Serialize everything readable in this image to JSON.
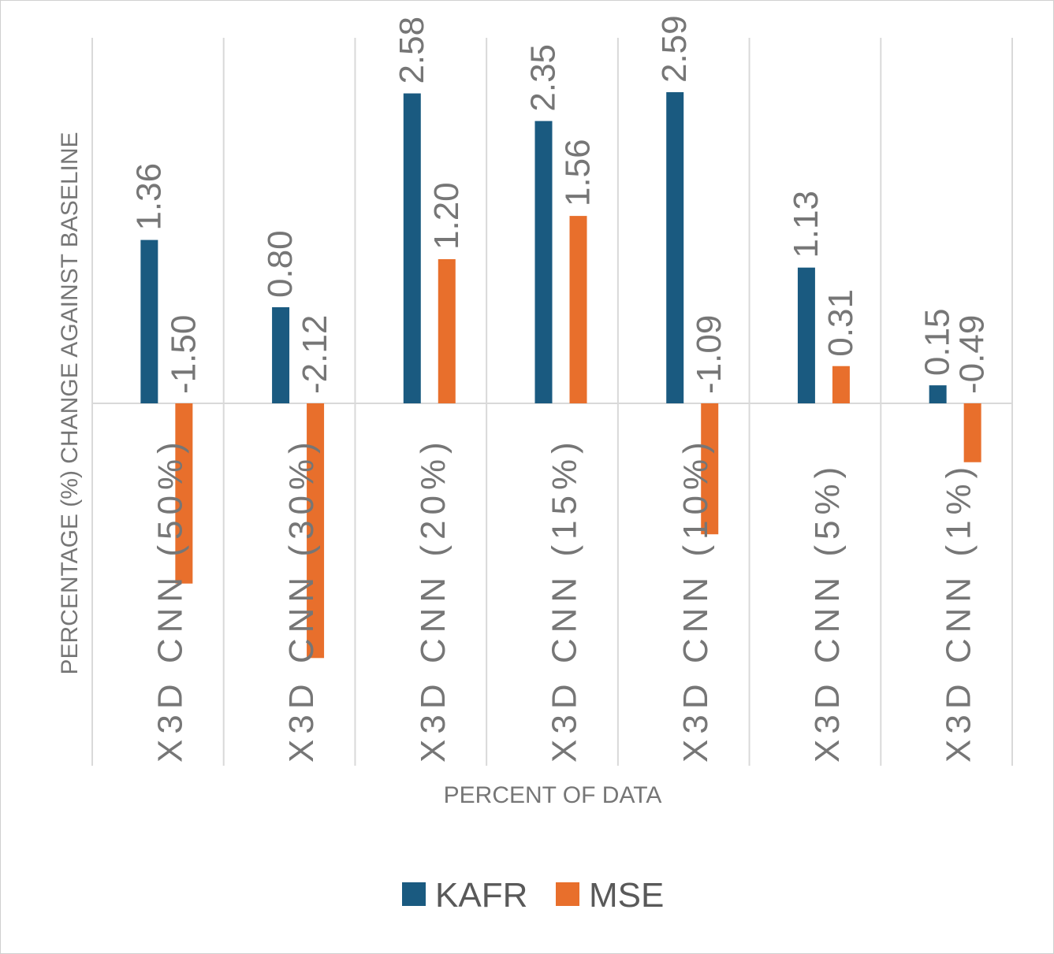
{
  "chart_data": {
    "type": "bar",
    "orientation": "vertical",
    "categories": [
      "X3D CNN (50%)",
      "X3D CNN (30%)",
      "X3D CNN (20%)",
      "X3D CNN (15%)",
      "X3D CNN (10%)",
      "X3D CNN (5%)",
      "X3D CNN (1%)"
    ],
    "series": [
      {
        "name": "KAFR",
        "color": "#1a5a80",
        "values": [
          1.36,
          0.8,
          2.58,
          2.35,
          2.59,
          1.13,
          0.15
        ]
      },
      {
        "name": "MSE",
        "color": "#e86f2c",
        "values": [
          -1.5,
          -2.12,
          1.2,
          1.56,
          -1.09,
          0.31,
          -0.49
        ]
      }
    ],
    "value_labels": {
      "KAFR": [
        "1.36",
        "0.80",
        "2.58",
        "2.35",
        "2.59",
        "1.13",
        "0.15"
      ],
      "MSE": [
        "-1.50",
        "-2.12",
        "1.20",
        "1.56",
        "-1.09",
        "0.31",
        "-0.49"
      ]
    },
    "title": "",
    "xlabel": "PERCENT OF DATA",
    "ylabel": "PERCENTAGE (%) CHANGE AGAINST BASELINE",
    "ylim": [
      -3.0,
      3.0
    ],
    "gridlines": "vertical",
    "legend_position": "bottom"
  }
}
